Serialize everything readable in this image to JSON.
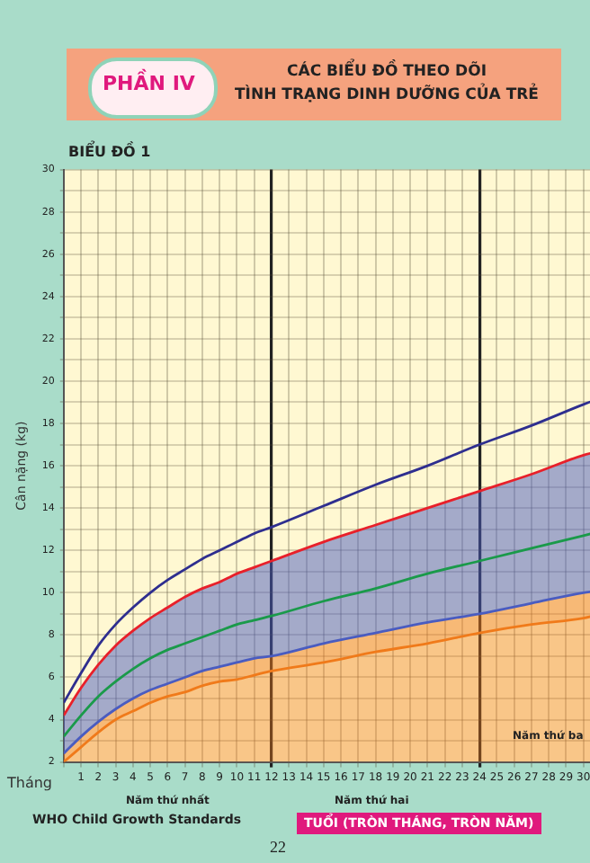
{
  "chart_data": {
    "type": "line",
    "title": "CÁC BIỂU ĐỒ THEO DÕI\nTÌNH TRẠNG DINH DƯỠNG CỦA TRẺ",
    "subtitle": "PHẦN IV",
    "ylabel": "Cân nặng (kg)",
    "xlabel": "TUỔI (TRÒN THÁNG, TRÒN NĂM)",
    "annotations": [
      "BIỂU ĐỒ 1",
      "Tháng",
      "Năm thứ nhất",
      "Năm thứ hai",
      "Năm thứ ba",
      "WHO Child Growth Standards",
      "22"
    ],
    "x": [
      0,
      1,
      2,
      3,
      4,
      5,
      6,
      7,
      8,
      9,
      10,
      11,
      12,
      15,
      18,
      21,
      24,
      27,
      30,
      31
    ],
    "series": [
      {
        "color": "#2e2e8f",
        "values": [
          4.8,
          6.2,
          7.5,
          8.5,
          9.3,
          10.0,
          10.6,
          11.1,
          11.6,
          12.0,
          12.4,
          12.8,
          13.1,
          14.1,
          15.1,
          16.0,
          17.0,
          17.9,
          18.9,
          19.2
        ]
      },
      {
        "color": "#e8202a",
        "values": [
          4.2,
          5.5,
          6.6,
          7.5,
          8.2,
          8.8,
          9.3,
          9.8,
          10.2,
          10.5,
          10.9,
          11.2,
          11.5,
          12.4,
          13.2,
          14.0,
          14.8,
          15.6,
          16.5,
          16.7
        ]
      },
      {
        "color": "#1a9a4a",
        "values": [
          3.2,
          4.2,
          5.1,
          5.8,
          6.4,
          6.9,
          7.3,
          7.6,
          7.9,
          8.2,
          8.5,
          8.7,
          8.9,
          9.6,
          10.2,
          10.9,
          11.5,
          12.1,
          12.7,
          12.9
        ]
      },
      {
        "color": "#4a5cc0",
        "values": [
          2.4,
          3.2,
          3.9,
          4.5,
          5.0,
          5.4,
          5.7,
          6.0,
          6.3,
          6.5,
          6.7,
          6.9,
          7.0,
          7.6,
          8.1,
          8.6,
          9.0,
          9.5,
          10.0,
          10.1
        ],
        "lower": [
          2.4,
          3.2,
          3.9,
          4.5,
          5.0,
          5.4,
          5.7,
          6.0,
          6.3,
          6.5,
          6.7,
          6.9,
          7.0,
          7.6,
          8.1,
          8.6,
          9.0,
          9.5,
          10.0,
          10.1
        ],
        "upper": [
          4.2,
          5.5,
          6.6,
          7.5,
          8.2,
          8.8,
          9.3,
          9.8,
          10.2,
          10.5,
          10.9,
          11.2,
          11.5,
          12.4,
          13.2,
          14.0,
          14.8,
          15.6,
          16.5,
          16.7
        ]
      },
      {
        "type": "area",
        "color": "#f07a1a",
        "values": [
          2.0,
          2.7,
          3.4,
          4.0,
          4.4,
          4.8,
          5.1,
          5.3,
          5.6,
          5.8,
          5.9,
          6.1,
          6.3,
          6.7,
          7.2,
          7.6,
          8.1,
          8.5,
          8.8,
          9.0
        ],
        "lower": [
          2.0,
          2.7,
          3.4,
          4.0,
          4.4,
          4.8,
          5.1,
          5.3,
          5.6,
          5.8,
          5.9,
          6.1,
          6.3,
          6.7,
          7.2,
          7.6,
          8.1,
          8.5,
          8.8,
          9.0
        ],
        "upper": [
          2.4,
          3.2,
          3.9,
          4.5,
          5.0,
          5.4,
          5.7,
          6.0,
          6.3,
          6.5,
          6.7,
          6.9,
          7.0,
          7.6,
          8.1,
          8.6,
          9.0,
          9.5,
          10.0,
          10.1
        ]
      }
    ],
    "xlim": [
      0,
      31
    ],
    "xticks": [
      {
        "value": 0,
        "label": null
      },
      1,
      2,
      3,
      4,
      5,
      6,
      7,
      8,
      9,
      10,
      11,
      12,
      13,
      14,
      15,
      16,
      17,
      18,
      19,
      20,
      21,
      22,
      23,
      24,
      25,
      26,
      27,
      28,
      29,
      30,
      {
        "value": 31,
        "label": null
      }
    ],
    "ylim": [
      2,
      30
    ],
    "yticks": [
      2,
      {
        "value": 3,
        "label": null
      },
      4,
      {
        "value": 5,
        "label": null
      },
      6,
      {
        "value": 7,
        "label": null
      },
      8,
      {
        "value": 9,
        "label": null
      },
      10,
      {
        "value": 11,
        "label": null
      },
      12,
      {
        "value": 13,
        "label": null
      },
      14,
      {
        "value": 15,
        "label": null
      },
      16,
      {
        "value": 17,
        "label": null
      },
      18,
      {
        "value": 19,
        "label": null
      },
      20,
      {
        "value": 21,
        "label": null
      },
      22,
      {
        "value": 23,
        "label": null
      },
      24,
      {
        "value": 25,
        "label": null
      },
      26,
      {
        "value": 27,
        "label": null
      },
      28,
      {
        "value": 29,
        "label": null
      },
      30
    ],
    "grid": true,
    "legend": false,
    "marker": "none",
    "line_style": "solid"
  }
}
